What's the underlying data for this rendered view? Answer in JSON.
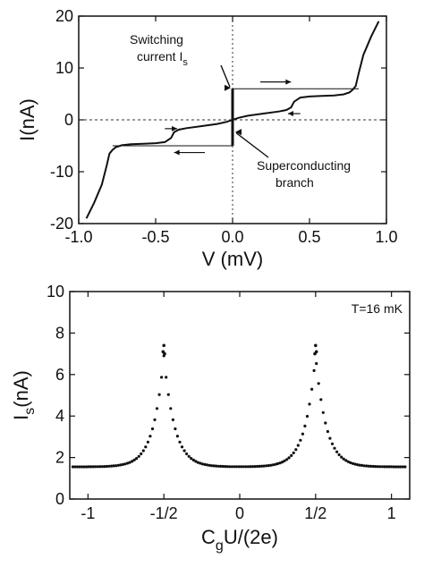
{
  "chart_data": [
    {
      "type": "line",
      "xlabel": "V (mV)",
      "ylabel": "I(nA)",
      "xlim": [
        -1.0,
        1.0
      ],
      "ylim": [
        -20,
        20
      ],
      "xticks": [
        -1.0,
        -0.5,
        0.0,
        0.5,
        1.0
      ],
      "xtick_labels": [
        "-1.0",
        "-0.5",
        "0.0",
        "0.5",
        "1.0"
      ],
      "yticks": [
        -20,
        -10,
        0,
        10,
        20
      ],
      "ytick_labels": [
        "-20",
        "-10",
        "0",
        "10",
        "20"
      ],
      "grid": false,
      "series": [
        {
          "x": [
            -0.95,
            -0.9,
            -0.85,
            -0.82,
            -0.8,
            -0.78,
            -0.76,
            -0.72,
            -0.66,
            -0.58,
            -0.5,
            -0.44,
            -0.4,
            -0.38,
            -0.35,
            -0.3,
            -0.2,
            -0.1,
            -0.04,
            -0.01,
            0.0,
            0.01,
            0.04,
            0.1,
            0.2,
            0.3,
            0.35,
            0.38,
            0.4,
            0.44,
            0.5,
            0.58,
            0.66,
            0.72,
            0.76,
            0.78,
            0.8,
            0.82,
            0.85,
            0.9,
            0.95
          ],
          "y": [
            -19.0,
            -16.0,
            -12.5,
            -9.0,
            -6.5,
            -5.8,
            -5.3,
            -4.9,
            -4.7,
            -4.6,
            -4.5,
            -4.3,
            -3.5,
            -2.4,
            -1.9,
            -1.6,
            -1.2,
            -0.8,
            -0.4,
            -0.1,
            0.0,
            0.1,
            0.4,
            0.8,
            1.2,
            1.6,
            1.9,
            2.4,
            3.5,
            4.3,
            4.5,
            4.6,
            4.7,
            4.9,
            5.3,
            5.8,
            6.5,
            9.0,
            12.5,
            16.0,
            19.0
          ]
        }
      ],
      "supercurrent_branch": {
        "v": 0.0,
        "i_min": -5.0,
        "i_max": 6.0
      },
      "switching_lines": [
        {
          "y": 6.0,
          "x_from": 0.0,
          "x_to": 0.82
        },
        {
          "y": -5.0,
          "x_from": -0.78,
          "x_to": 0.0
        }
      ],
      "direction_arrows": [
        {
          "y": 7.3,
          "x_from": 0.18,
          "x_to": 0.38,
          "dir": "right"
        },
        {
          "y": 1.2,
          "x_from": 0.44,
          "x_to": 0.36,
          "dir": "left"
        },
        {
          "y": -1.7,
          "x_from": -0.44,
          "x_to": -0.36,
          "dir": "right"
        },
        {
          "y": -6.3,
          "x_from": -0.18,
          "x_to": -0.38,
          "dir": "left"
        }
      ],
      "annotations": [
        {
          "lines": [
            "Switching",
            "current I"
          ],
          "subscript": "s",
          "arrow_to": [
            0.0,
            6.0
          ]
        },
        {
          "lines": [
            "Superconducting",
            "branch"
          ],
          "arrow_to": [
            0.0,
            -2.0
          ]
        }
      ]
    },
    {
      "type": "scatter",
      "xlabel_main": "C",
      "xlabel_sub": "g",
      "xlabel_rest": "U/(2e)",
      "ylabel_main": "I",
      "ylabel_sub": "s",
      "ylabel_rest": "(nA)",
      "xlim": [
        -1.12,
        1.12
      ],
      "ylim": [
        0,
        10
      ],
      "xticks": [
        -1,
        -0.5,
        0,
        0.5,
        1
      ],
      "xtick_labels": [
        "-1",
        "-1/2",
        "0",
        "1/2",
        "1"
      ],
      "yticks": [
        0,
        2,
        4,
        6,
        8,
        10
      ],
      "ytick_labels": [
        "0",
        "2",
        "4",
        "6",
        "8",
        "10"
      ],
      "grid": false,
      "annotation": "T=16 mK",
      "annotation_position": "top-right",
      "model": {
        "baseline": 1.55,
        "amplitude": 5.35,
        "width": 0.07,
        "peaks": [
          -0.5,
          0.5
        ],
        "x_step": 0.015
      },
      "peak_extra_points": [
        {
          "x": -0.5,
          "y": 7.4
        },
        {
          "x": -0.505,
          "y": 7.1
        },
        {
          "x": -0.495,
          "y": 7.0
        },
        {
          "x": 0.5,
          "y": 7.4
        },
        {
          "x": 0.505,
          "y": 7.1
        },
        {
          "x": 0.495,
          "y": 7.0
        }
      ]
    }
  ]
}
